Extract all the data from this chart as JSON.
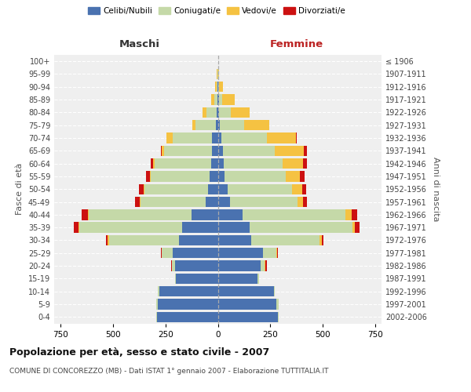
{
  "age_groups": [
    "0-4",
    "5-9",
    "10-14",
    "15-19",
    "20-24",
    "25-29",
    "30-34",
    "35-39",
    "40-44",
    "45-49",
    "50-54",
    "55-59",
    "60-64",
    "65-69",
    "70-74",
    "75-79",
    "80-84",
    "85-89",
    "90-94",
    "95-99",
    "100+"
  ],
  "birth_years": [
    "2002-2006",
    "1997-2001",
    "1992-1996",
    "1987-1991",
    "1982-1986",
    "1977-1981",
    "1972-1976",
    "1967-1971",
    "1962-1966",
    "1957-1961",
    "1952-1956",
    "1947-1951",
    "1942-1946",
    "1937-1941",
    "1932-1936",
    "1927-1931",
    "1922-1926",
    "1917-1921",
    "1912-1916",
    "1907-1911",
    "≤ 1906"
  ],
  "males": {
    "celibi": [
      290,
      285,
      280,
      200,
      205,
      215,
      185,
      170,
      125,
      58,
      48,
      38,
      33,
      28,
      28,
      8,
      4,
      2,
      2,
      0,
      0
    ],
    "coniugati": [
      5,
      10,
      5,
      5,
      12,
      52,
      335,
      490,
      490,
      310,
      300,
      280,
      270,
      230,
      188,
      98,
      52,
      14,
      5,
      2,
      0
    ],
    "vedovi": [
      0,
      0,
      0,
      0,
      0,
      0,
      5,
      5,
      5,
      5,
      5,
      5,
      5,
      8,
      28,
      14,
      18,
      14,
      5,
      2,
      0
    ],
    "divorziati": [
      0,
      0,
      0,
      0,
      5,
      5,
      8,
      20,
      28,
      20,
      22,
      18,
      10,
      5,
      0,
      0,
      0,
      0,
      0,
      0,
      0
    ]
  },
  "females": {
    "nubili": [
      285,
      280,
      268,
      188,
      205,
      215,
      158,
      152,
      118,
      58,
      48,
      33,
      28,
      23,
      18,
      8,
      4,
      4,
      2,
      0,
      0
    ],
    "coniugate": [
      5,
      10,
      5,
      8,
      18,
      62,
      328,
      490,
      490,
      320,
      305,
      290,
      280,
      250,
      215,
      118,
      58,
      18,
      5,
      2,
      0
    ],
    "vedove": [
      0,
      0,
      0,
      0,
      5,
      5,
      8,
      12,
      28,
      28,
      48,
      68,
      98,
      138,
      138,
      118,
      88,
      58,
      18,
      5,
      0
    ],
    "divorziate": [
      0,
      0,
      0,
      0,
      5,
      5,
      8,
      22,
      28,
      20,
      18,
      22,
      18,
      14,
      5,
      0,
      0,
      0,
      0,
      0,
      0
    ]
  },
  "colors": {
    "celibi": "#4a72b0",
    "coniugati": "#c5d9a8",
    "vedovi": "#f5c242",
    "divorziati": "#cc1111"
  },
  "xlim": 780,
  "title": "Popolazione per età, sesso e stato civile - 2007",
  "subtitle": "COMUNE DI CONCOREZZO (MB) - Dati ISTAT 1° gennaio 2007 - Elaborazione TUTTITALIA.IT",
  "ylabel_left": "Fasce di età",
  "ylabel_right": "Anni di nascita",
  "xlabel_left": "Maschi",
  "xlabel_right": "Femmine",
  "legend_labels": [
    "Celibi/Nubili",
    "Coniugati/e",
    "Vedovi/e",
    "Divorziati/e"
  ],
  "background_color": "#ffffff",
  "plot_bg": "#efefef"
}
